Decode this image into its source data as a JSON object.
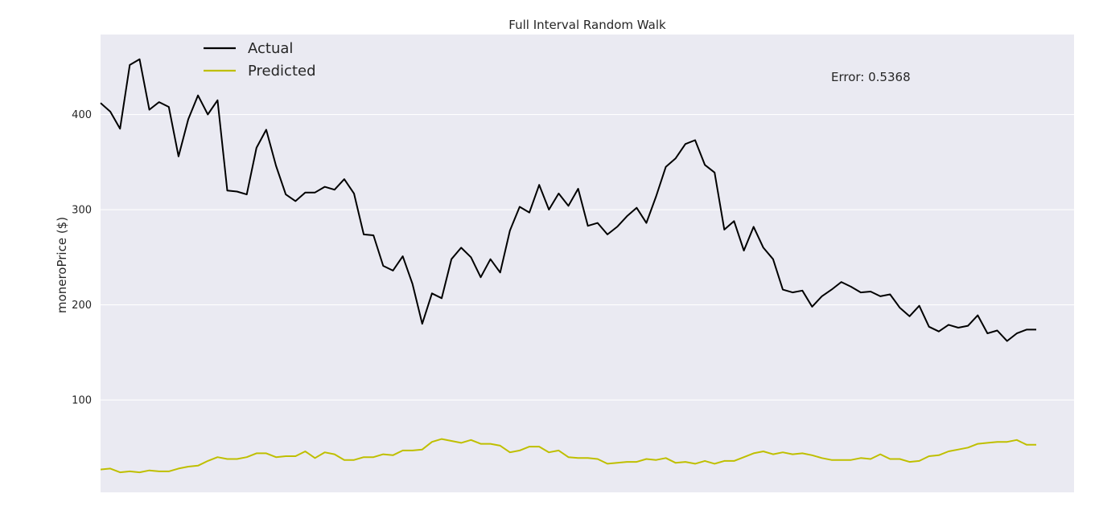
{
  "chart_data": {
    "type": "line",
    "title": "Full Interval Random Walk",
    "xlabel": "",
    "ylabel": "moneroPrice ($)",
    "ylim": [
      3,
      484
    ],
    "yticks": [
      100,
      200,
      300,
      400
    ],
    "grid": true,
    "legend_position": "top-left",
    "annotation": "Error: 0.5368",
    "x": [
      0,
      1,
      2,
      3,
      4,
      5,
      6,
      7,
      8,
      9,
      10,
      11,
      12,
      13,
      14,
      15,
      16,
      17,
      18,
      19,
      20,
      21,
      22,
      23,
      24,
      25,
      26,
      27,
      28,
      29,
      30,
      31,
      32,
      33,
      34,
      35,
      36,
      37,
      38,
      39,
      40,
      41,
      42,
      43,
      44,
      45,
      46,
      47,
      48,
      49,
      50,
      51,
      52,
      53,
      54,
      55,
      56,
      57,
      58,
      59,
      60,
      61,
      62,
      63,
      64,
      65,
      66,
      67,
      68,
      69,
      70,
      71,
      72,
      73,
      74,
      75,
      76,
      77,
      78,
      79,
      80,
      81,
      82,
      83,
      84,
      85,
      86,
      87,
      88,
      89,
      90,
      91,
      92,
      93,
      94,
      95,
      96
    ],
    "series": [
      {
        "name": "Actual",
        "color": "#000000",
        "values": [
          412,
          403,
          385,
          452,
          458,
          405,
          413,
          408,
          356,
          395,
          420,
          400,
          415,
          320,
          319,
          316,
          365,
          384,
          346,
          316,
          309,
          318,
          318,
          324,
          321,
          332,
          317,
          274,
          273,
          241,
          236,
          251,
          222,
          180,
          212,
          207,
          248,
          260,
          250,
          229,
          248,
          234,
          278,
          303,
          297,
          326,
          300,
          317,
          304,
          322,
          283,
          286,
          274,
          282,
          293,
          302,
          286,
          314,
          345,
          354,
          369,
          373,
          347,
          339,
          279,
          288,
          257,
          282,
          260,
          248,
          216,
          213,
          215,
          198,
          209,
          216,
          224,
          219,
          213,
          214,
          209,
          211,
          197,
          188,
          199,
          177,
          172,
          179,
          176,
          178,
          189,
          170,
          173,
          162,
          170,
          174,
          174
        ]
      },
      {
        "name": "Predicted",
        "color": "#bfbf00",
        "values": [
          27,
          28,
          24,
          25,
          24,
          26,
          25,
          25,
          28,
          30,
          31,
          36,
          40,
          38,
          38,
          40,
          44,
          44,
          40,
          41,
          41,
          46,
          39,
          45,
          43,
          37,
          37,
          40,
          40,
          43,
          42,
          47,
          47,
          48,
          56,
          59,
          57,
          55,
          58,
          54,
          54,
          52,
          45,
          47,
          51,
          51,
          45,
          47,
          40,
          39,
          39,
          38,
          33,
          34,
          35,
          35,
          38,
          37,
          39,
          34,
          35,
          33,
          36,
          33,
          36,
          36,
          40,
          44,
          46,
          43,
          45,
          43,
          44,
          42,
          39,
          37,
          37,
          37,
          39,
          38,
          43,
          38,
          38,
          35,
          36,
          41,
          42,
          46,
          48,
          50,
          54,
          55,
          56,
          56,
          58,
          53,
          53
        ]
      }
    ]
  }
}
